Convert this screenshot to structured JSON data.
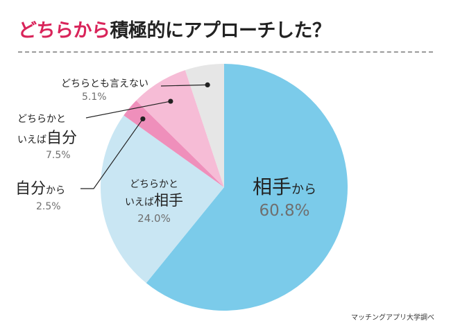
{
  "title": {
    "highlight": "どちらから",
    "rest": "積極的にアプローチした？"
  },
  "source": "マッチングアプリ大学調べ",
  "chart_data": {
    "type": "pie",
    "title": "どちらから積極的にアプローチした？",
    "slices": [
      {
        "label_main": "相手",
        "label_small": "から",
        "label": "相手から",
        "value": 60.8,
        "pct_label": "60.8%",
        "color": "#7bcbea"
      },
      {
        "label_main": "どちらかと",
        "label_small": "いえば相手",
        "label": "どちらかといえば相手",
        "value": 24.0,
        "pct_label": "24.0%",
        "color": "#c9e6f3"
      },
      {
        "label_main": "自分",
        "label_small": "から",
        "label": "自分から",
        "value": 2.5,
        "pct_label": "2.5%",
        "color": "#ef8fbb"
      },
      {
        "label_main": "どちらかと",
        "label_small": "いえば自分",
        "label": "どちらかといえば自分",
        "value": 7.5,
        "pct_label": "7.5%",
        "color": "#f6bcd6"
      },
      {
        "label_main": "どちらとも言えない",
        "label_small": "",
        "label": "どちらとも言えない",
        "value": 5.1,
        "pct_label": "5.1%",
        "color": "#e6e6e6"
      }
    ]
  }
}
